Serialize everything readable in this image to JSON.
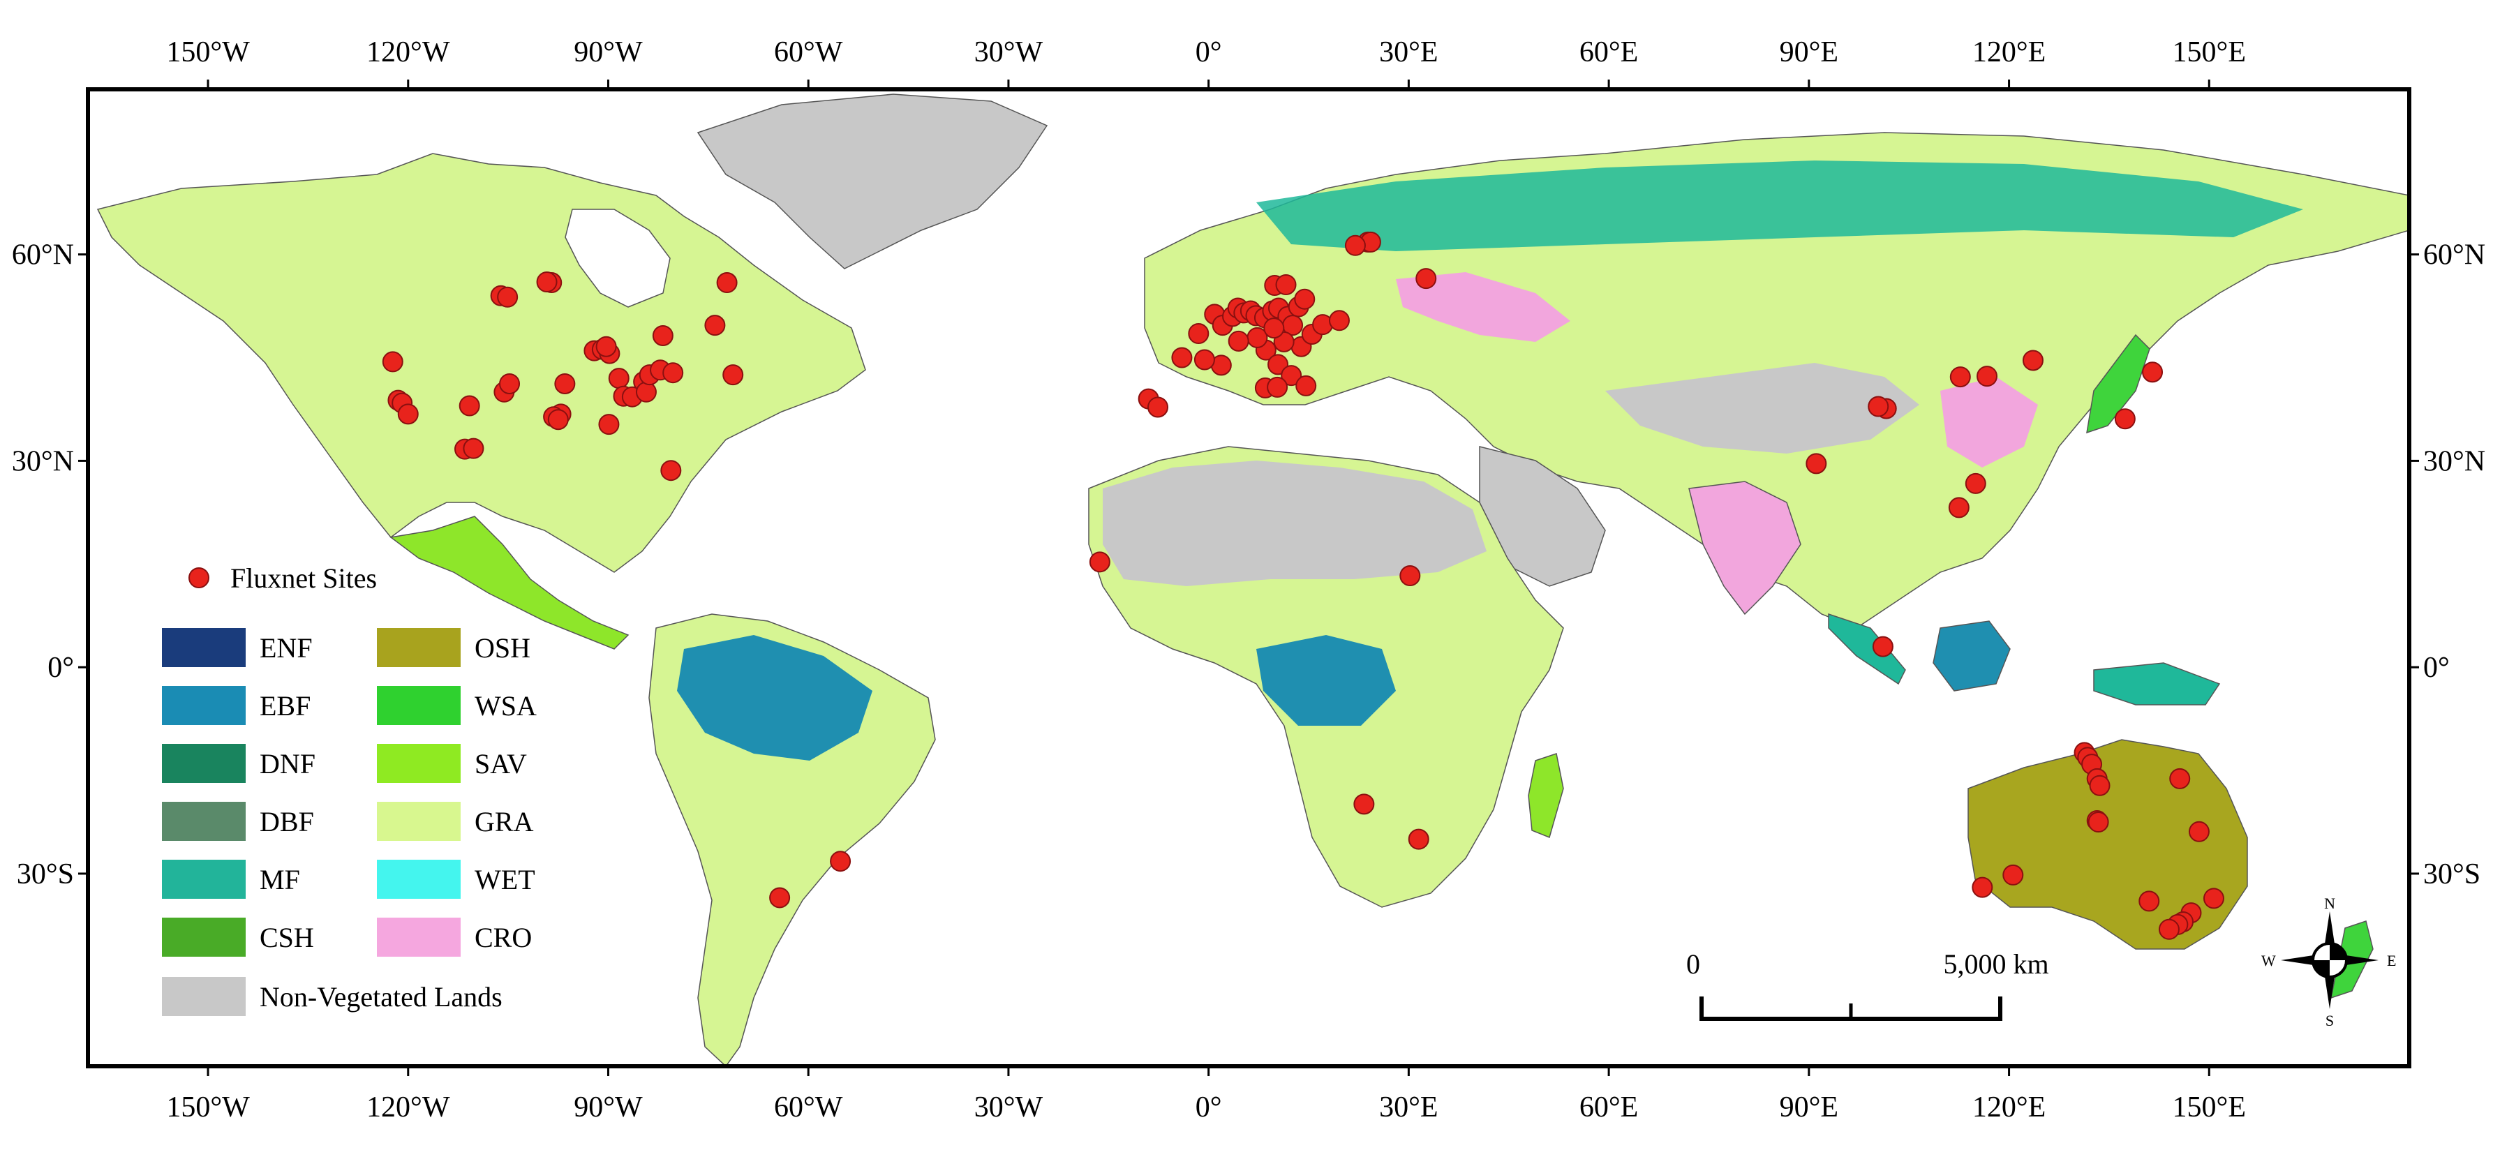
{
  "map": {
    "lon_ticks": [
      "150°W",
      "120°W",
      "90°W",
      "60°W",
      "30°W",
      "0°",
      "30°E",
      "60°E",
      "90°E",
      "120°E",
      "150°E"
    ],
    "lat_ticks_left": [
      "60°N",
      "30°N",
      "0°",
      "30°S"
    ],
    "lat_ticks_right": [
      "60°N",
      "30°N",
      "0°",
      "30°S"
    ],
    "lat_values": [
      60,
      30,
      0,
      -30
    ],
    "lon_values": [
      -150,
      -120,
      -90,
      -60,
      -30,
      0,
      30,
      60,
      90,
      120,
      150
    ],
    "extent": {
      "lon_min": -168,
      "lon_max": 180,
      "lat_max": 84,
      "lat_min": -58
    },
    "layer_colors": {
      "ocean": "#ffffff",
      "non_vegetated": "#c8c8c8",
      "gra": "#d6f593",
      "osh": "#a8a61f",
      "sav": "#8ee62a",
      "wsa": "#3fd43c",
      "csh": "#48b22a",
      "ebf": "#1f8fb0",
      "enf": "#1a3f7a",
      "mf": "#1fb89a",
      "cro": "#f2a6dd",
      "wet": "#44f2ea",
      "site": "#e8231c",
      "borders": "#444444"
    }
  },
  "legend": {
    "sites_label": "Fluxnet Sites",
    "col1": [
      {
        "code": "ENF",
        "color": "#1a3c7c"
      },
      {
        "code": "EBF",
        "color": "#1a8cb4"
      },
      {
        "code": "DNF",
        "color": "#19845e"
      },
      {
        "code": "DBF",
        "color": "#5a8a6a"
      },
      {
        "code": "MF",
        "color": "#22b49a"
      },
      {
        "code": "CSH",
        "color": "#49ab27"
      }
    ],
    "col2": [
      {
        "code": "OSH",
        "color": "#a8a31e"
      },
      {
        "code": "WSA",
        "color": "#2fd12f"
      },
      {
        "code": "SAV",
        "color": "#8fea22"
      },
      {
        "code": "GRA",
        "color": "#d8f78f"
      },
      {
        "code": "WET",
        "color": "#44f5ee"
      },
      {
        "code": "CRO",
        "color": "#f5a7df"
      }
    ],
    "nonveg_label": "Non-Vegetated Lands",
    "nonveg_color": "#c8c8c8"
  },
  "scale_bar": {
    "start_label": "0",
    "end_label": "5,000 km"
  },
  "compass": {
    "n": "N",
    "s": "S",
    "e": "E",
    "w": "W"
  },
  "sites": [
    [
      -122.3,
      44.4
    ],
    [
      -121.5,
      38.8
    ],
    [
      -120.9,
      38.4
    ],
    [
      -120.0,
      36.8
    ],
    [
      -110.8,
      38.0
    ],
    [
      -111.5,
      31.7
    ],
    [
      -110.2,
      31.8
    ],
    [
      -105.6,
      40.0
    ],
    [
      -104.8,
      41.2
    ],
    [
      -106.1,
      54.0
    ],
    [
      -105.1,
      53.8
    ],
    [
      -98.5,
      55.9
    ],
    [
      -99.2,
      56.0
    ],
    [
      -97.1,
      36.8
    ],
    [
      -98.2,
      36.4
    ],
    [
      -96.5,
      41.2
    ],
    [
      -97.5,
      36.0
    ],
    [
      -92.1,
      46.0
    ],
    [
      -90.9,
      46.2
    ],
    [
      -89.8,
      45.6
    ],
    [
      -90.3,
      46.6
    ],
    [
      -88.4,
      42.0
    ],
    [
      -87.7,
      39.4
    ],
    [
      -89.9,
      35.3
    ],
    [
      -86.4,
      39.3
    ],
    [
      -84.7,
      41.5
    ],
    [
      -84.3,
      40.0
    ],
    [
      -83.8,
      42.5
    ],
    [
      -82.2,
      43.2
    ],
    [
      -80.3,
      42.8
    ],
    [
      -81.8,
      48.2
    ],
    [
      -74.0,
      49.7
    ],
    [
      -71.3,
      42.5
    ],
    [
      -72.2,
      55.9
    ],
    [
      -80.6,
      28.6
    ],
    [
      -9.0,
      39.0
    ],
    [
      -7.6,
      37.8
    ],
    [
      -4.0,
      45.0
    ],
    [
      -1.5,
      48.5
    ],
    [
      0.9,
      51.3
    ],
    [
      2.1,
      49.7
    ],
    [
      3.6,
      51.0
    ],
    [
      4.4,
      52.2
    ],
    [
      5.3,
      51.5
    ],
    [
      6.3,
      51.8
    ],
    [
      7.1,
      51.1
    ],
    [
      8.4,
      50.8
    ],
    [
      9.6,
      51.8
    ],
    [
      10.5,
      52.2
    ],
    [
      11.9,
      51.0
    ],
    [
      13.5,
      52.4
    ],
    [
      12.6,
      49.7
    ],
    [
      13.9,
      46.6
    ],
    [
      11.3,
      47.3
    ],
    [
      8.6,
      46.1
    ],
    [
      7.3,
      47.9
    ],
    [
      9.8,
      49.3
    ],
    [
      10.4,
      44.0
    ],
    [
      12.4,
      42.4
    ],
    [
      14.6,
      40.9
    ],
    [
      8.5,
      40.6
    ],
    [
      10.3,
      40.7
    ],
    [
      15.5,
      48.4
    ],
    [
      17.1,
      49.8
    ],
    [
      14.4,
      53.5
    ],
    [
      9.9,
      55.5
    ],
    [
      11.6,
      55.6
    ],
    [
      4.5,
      47.4
    ],
    [
      1.9,
      43.9
    ],
    [
      -0.6,
      44.7
    ],
    [
      19.6,
      50.4
    ],
    [
      23.9,
      61.8
    ],
    [
      24.3,
      61.8
    ],
    [
      22.0,
      61.3
    ],
    [
      32.6,
      56.5
    ],
    [
      -16.3,
      15.3
    ],
    [
      30.2,
      13.3
    ],
    [
      23.3,
      -19.9
    ],
    [
      31.5,
      -25.0
    ],
    [
      -64.3,
      -33.5
    ],
    [
      -55.2,
      -28.2
    ],
    [
      101.1,
      3.0
    ],
    [
      91.1,
      29.6
    ],
    [
      101.6,
      37.6
    ],
    [
      100.4,
      37.9
    ],
    [
      112.7,
      42.2
    ],
    [
      116.7,
      42.3
    ],
    [
      123.6,
      44.6
    ],
    [
      115.0,
      26.7
    ],
    [
      112.5,
      23.2
    ],
    [
      137.4,
      36.1
    ],
    [
      141.5,
      42.9
    ],
    [
      131.3,
      -12.4
    ],
    [
      131.8,
      -13.1
    ],
    [
      132.4,
      -14.1
    ],
    [
      133.2,
      -16.2
    ],
    [
      133.6,
      -17.2
    ],
    [
      133.2,
      -22.3
    ],
    [
      133.4,
      -22.5
    ],
    [
      145.6,
      -16.2
    ],
    [
      148.5,
      -23.9
    ],
    [
      150.7,
      -33.6
    ],
    [
      141.0,
      -34.0
    ],
    [
      147.3,
      -35.7
    ],
    [
      146.1,
      -37.0
    ],
    [
      145.3,
      -37.4
    ],
    [
      144.0,
      -38.1
    ],
    [
      116.0,
      -32.0
    ],
    [
      120.6,
      -30.2
    ]
  ]
}
